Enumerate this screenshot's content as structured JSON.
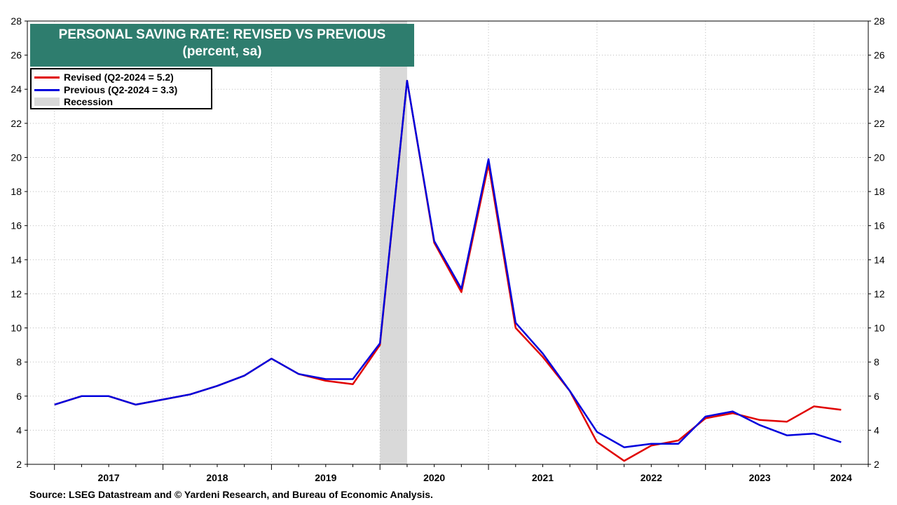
{
  "chart_data": {
    "type": "line",
    "title": "PERSONAL SAVING RATE: REVISED VS PREVIOUS",
    "subtitle": "(percent, sa)",
    "ylim": [
      2,
      28
    ],
    "yticks": [
      "2",
      "4",
      "6",
      "8",
      "10",
      "12",
      "14",
      "16",
      "18",
      "20",
      "22",
      "24",
      "26",
      "28"
    ],
    "x_axis": {
      "start": 2016.75,
      "end": 2024.5,
      "labels": [
        "2017",
        "2018",
        "2019",
        "2020",
        "2021",
        "2022",
        "2023",
        "2024"
      ]
    },
    "recession": {
      "label": "Recession",
      "start": 2020.0,
      "end": 2020.25
    },
    "x": [
      2017.0,
      2017.25,
      2017.5,
      2017.75,
      2018.0,
      2018.25,
      2018.5,
      2018.75,
      2019.0,
      2019.25,
      2019.5,
      2019.75,
      2020.0,
      2020.25,
      2020.5,
      2020.75,
      2021.0,
      2021.25,
      2021.5,
      2021.75,
      2022.0,
      2022.25,
      2022.5,
      2022.75,
      2023.0,
      2023.25,
      2023.5,
      2023.75,
      2024.0,
      2024.25,
      2024.5
    ],
    "series": [
      {
        "name": "Revised",
        "legend": "Revised (Q2-2024 = 5.2)",
        "color": "#e00000",
        "values": [
          5.5,
          6.0,
          6.0,
          5.5,
          5.8,
          6.1,
          6.6,
          7.2,
          8.2,
          7.3,
          6.9,
          6.7,
          9.0,
          24.5,
          15.0,
          12.1,
          19.6,
          10.0,
          8.3,
          6.3,
          3.3,
          2.2,
          3.1,
          3.4,
          4.7,
          5.0,
          4.6,
          4.5,
          5.4,
          5.2,
          null
        ]
      },
      {
        "name": "Previous",
        "legend": "Previous (Q2-2024 = 3.3)",
        "color": "#0000dd",
        "values": [
          5.5,
          6.0,
          6.0,
          5.5,
          5.8,
          6.1,
          6.6,
          7.2,
          8.2,
          7.3,
          7.0,
          7.0,
          9.1,
          24.5,
          15.1,
          12.3,
          19.9,
          10.3,
          8.5,
          6.3,
          3.9,
          3.0,
          3.2,
          3.2,
          4.8,
          5.1,
          4.3,
          3.7,
          3.8,
          3.3,
          null
        ]
      }
    ],
    "legend_placement": "top-left",
    "source": "Source: LSEG Datastream and © Yardeni Research, and Bureau of Economic Analysis."
  },
  "colors": {
    "title_bg": "#2e7d6e",
    "recession": "#d9d9d9",
    "grid": "#bbbbbb"
  }
}
